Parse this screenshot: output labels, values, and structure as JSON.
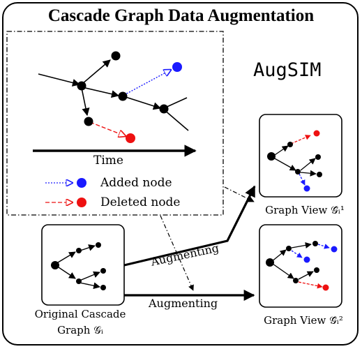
{
  "title": "Cascade Graph Data Augmentation",
  "brand": "AugSIM",
  "timeline_label": "Time",
  "legend": {
    "added": "Added node",
    "deleted": "Deleted node"
  },
  "panels": {
    "original_line1": "Original Cascade",
    "original_line2": "Graph 𝒢ᵢ",
    "view1": "Graph View 𝒢̂ᵢ¹",
    "view2": "Graph View 𝒢̂ᵢ²"
  },
  "arrows": {
    "augment_top": "Augmenting",
    "augment_bottom": "Augmenting"
  },
  "colors": {
    "added": "#1a1aff",
    "deleted": "#ee1111",
    "node": "#000000"
  }
}
